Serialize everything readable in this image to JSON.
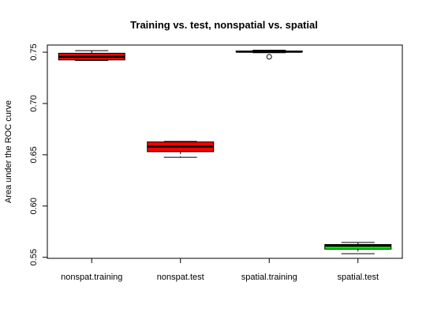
{
  "chart_data": {
    "type": "boxplot",
    "title": "Training vs. test, nonspatial vs. spatial",
    "xlabel": "",
    "ylabel": "Area under the ROC curve",
    "ylim": [
      0.549,
      0.757
    ],
    "yticks": [
      0.55,
      0.6,
      0.65,
      0.7,
      0.75
    ],
    "ytick_labels": [
      "0.55",
      "0.60",
      "0.65",
      "0.70",
      "0.75"
    ],
    "grid": false,
    "categories": [
      "nonspat.training",
      "nonspat.test",
      "spatial.training",
      "spatial.test"
    ],
    "boxes": [
      {
        "category": "nonspat.training",
        "whisker_low": 0.742,
        "q1": 0.7425,
        "median": 0.7455,
        "q3": 0.749,
        "whisker_high": 0.7515,
        "outliers": [],
        "fill": "#ff0000"
      },
      {
        "category": "nonspat.test",
        "whisker_low": 0.6475,
        "q1": 0.653,
        "median": 0.658,
        "q3": 0.6625,
        "whisker_high": 0.663,
        "outliers": [],
        "fill": "#ff0000"
      },
      {
        "category": "spatial.training",
        "whisker_low": 0.7495,
        "q1": 0.7505,
        "median": 0.7505,
        "q3": 0.7512,
        "whisker_high": 0.752,
        "outliers": [
          0.7455
        ],
        "fill": "#00ff00"
      },
      {
        "category": "spatial.test",
        "whisker_low": 0.5535,
        "q1": 0.558,
        "median": 0.5612,
        "q3": 0.5625,
        "whisker_high": 0.5645,
        "outliers": [],
        "fill": "#00ff00"
      }
    ]
  }
}
